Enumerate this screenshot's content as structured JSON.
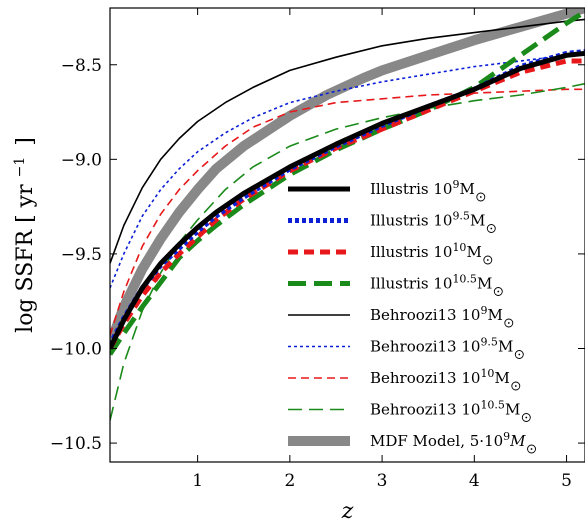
{
  "chart_data": {
    "type": "line",
    "title": "",
    "xlabel": "z",
    "ylabel": "log SSFR [ yr",
    "ylabel_sup": "−1",
    "ylabel_close": "]",
    "xlim": [
      0.05,
      5.2
    ],
    "ylim": [
      -10.6,
      -8.2
    ],
    "grid": false,
    "legend": "lower-right",
    "xticks": [
      {
        "value": 1,
        "label": "1"
      },
      {
        "value": 2,
        "label": "2"
      },
      {
        "value": 3,
        "label": "3"
      },
      {
        "value": 4,
        "label": "4"
      },
      {
        "value": 5,
        "label": "5"
      }
    ],
    "yticks": [
      {
        "value": -8.5,
        "label": "−8.5"
      },
      {
        "value": -9.0,
        "label": "−9.0"
      },
      {
        "value": -9.5,
        "label": "−9.5"
      },
      {
        "value": -10.0,
        "label": "−10.0"
      },
      {
        "value": -10.5,
        "label": "−10.5"
      }
    ],
    "series": [
      {
        "name": "Illustris 10",
        "sup": "9",
        "suffix": "M",
        "sun": true,
        "color": "#000000",
        "width": 5,
        "dash": "",
        "x": [
          0.05,
          0.2,
          0.4,
          0.6,
          0.8,
          1.0,
          1.2,
          1.5,
          2.0,
          2.5,
          3.0,
          3.5,
          4.0,
          4.5,
          5.0,
          5.2
        ],
        "y": [
          -10.0,
          -9.85,
          -9.68,
          -9.55,
          -9.45,
          -9.36,
          -9.28,
          -9.18,
          -9.04,
          -8.92,
          -8.81,
          -8.72,
          -8.63,
          -8.52,
          -8.45,
          -8.44
        ]
      },
      {
        "name": "Illustris 10",
        "sup": "9.5",
        "suffix": "M",
        "sun": true,
        "color": "#0a1fd6",
        "width": 5,
        "dash": "4 3",
        "x": [
          0.05,
          0.2,
          0.4,
          0.6,
          0.8,
          1.0,
          1.2,
          1.5,
          2.0,
          2.5,
          3.0,
          3.5,
          4.0,
          4.5,
          5.0,
          5.2
        ],
        "y": [
          -9.98,
          -9.84,
          -9.68,
          -9.56,
          -9.47,
          -9.38,
          -9.3,
          -9.2,
          -9.05,
          -8.93,
          -8.82,
          -8.72,
          -8.63,
          -8.51,
          -8.44,
          -8.43
        ]
      },
      {
        "name": "Illustris 10",
        "sup": "10",
        "suffix": "M",
        "sun": true,
        "color": "#e8181a",
        "width": 5,
        "dash": "10 6",
        "x": [
          0.05,
          0.2,
          0.4,
          0.6,
          0.8,
          1.0,
          1.2,
          1.5,
          2.0,
          2.5,
          3.0,
          3.5,
          4.0,
          4.5,
          5.0,
          5.2
        ],
        "y": [
          -10.0,
          -9.87,
          -9.72,
          -9.6,
          -9.5,
          -9.41,
          -9.32,
          -9.21,
          -9.06,
          -8.94,
          -8.84,
          -8.74,
          -8.64,
          -8.54,
          -8.48,
          -8.48
        ]
      },
      {
        "name": "Illustris 10",
        "sup": "10.5",
        "suffix": "M",
        "sun": true,
        "color": "#1a8a1a",
        "width": 5,
        "dash": "18 8",
        "x": [
          0.05,
          0.2,
          0.4,
          0.6,
          0.8,
          1.0,
          1.2,
          1.5,
          2.0,
          2.5,
          3.0,
          3.5,
          4.0,
          4.5,
          5.0,
          5.2
        ],
        "y": [
          -10.03,
          -9.92,
          -9.78,
          -9.65,
          -9.52,
          -9.43,
          -9.35,
          -9.24,
          -9.08,
          -8.95,
          -8.84,
          -8.74,
          -8.62,
          -8.45,
          -8.28,
          -8.22
        ]
      },
      {
        "name": "Behroozi13 10",
        "sup": "9",
        "suffix": "M",
        "sun": true,
        "color": "#000000",
        "width": 1.6,
        "dash": "",
        "x": [
          0.05,
          0.2,
          0.4,
          0.6,
          0.8,
          1.0,
          1.3,
          1.6,
          2.0,
          2.5,
          3.0,
          3.5,
          4.0,
          4.5,
          5.0,
          5.2
        ],
        "y": [
          -9.55,
          -9.35,
          -9.15,
          -9.0,
          -8.89,
          -8.8,
          -8.7,
          -8.62,
          -8.53,
          -8.46,
          -8.4,
          -8.36,
          -8.33,
          -8.3,
          -8.27,
          -8.26
        ]
      },
      {
        "name": "Behroozi13 10",
        "sup": "9.5",
        "suffix": "M",
        "sun": true,
        "color": "#0a1fd6",
        "width": 1.6,
        "dash": "3 3",
        "x": [
          0.05,
          0.2,
          0.4,
          0.6,
          0.8,
          1.0,
          1.3,
          1.6,
          2.0,
          2.5,
          3.0,
          3.5,
          4.0,
          4.5,
          5.0,
          5.2
        ],
        "y": [
          -9.68,
          -9.5,
          -9.3,
          -9.16,
          -9.05,
          -8.96,
          -8.86,
          -8.78,
          -8.7,
          -8.64,
          -8.59,
          -8.55,
          -8.51,
          -8.48,
          -8.45,
          -8.44
        ]
      },
      {
        "name": "Behroozi13 10",
        "sup": "10",
        "suffix": "M",
        "sun": true,
        "color": "#e8181a",
        "width": 1.6,
        "dash": "8 5",
        "x": [
          0.05,
          0.2,
          0.4,
          0.6,
          0.8,
          1.0,
          1.3,
          1.6,
          2.0,
          2.5,
          3.0,
          3.5,
          4.0,
          4.5,
          5.0,
          5.2
        ],
        "y": [
          -9.93,
          -9.7,
          -9.46,
          -9.29,
          -9.16,
          -9.06,
          -8.93,
          -8.83,
          -8.75,
          -8.7,
          -8.68,
          -8.66,
          -8.65,
          -8.64,
          -8.63,
          -8.63
        ]
      },
      {
        "name": "Behroozi13 10",
        "sup": "10.5",
        "suffix": "M",
        "sun": true,
        "color": "#1a8a1a",
        "width": 1.6,
        "dash": "14 7",
        "x": [
          0.05,
          0.2,
          0.4,
          0.6,
          0.8,
          1.0,
          1.3,
          1.6,
          2.0,
          2.5,
          3.0,
          3.5,
          4.0,
          4.5,
          5.0,
          5.2
        ],
        "y": [
          -10.38,
          -10.08,
          -9.8,
          -9.6,
          -9.44,
          -9.32,
          -9.16,
          -9.04,
          -8.93,
          -8.84,
          -8.78,
          -8.73,
          -8.69,
          -8.66,
          -8.62,
          -8.6
        ]
      },
      {
        "name": "MDF Model, 5·10",
        "sup": "9",
        "suffix": "M",
        "sun": true,
        "italicM": true,
        "color": "#888888",
        "width": 10,
        "dash": "",
        "x": [
          0.05,
          0.2,
          0.4,
          0.6,
          0.8,
          1.0,
          1.2,
          1.5,
          2.0,
          2.4,
          2.8,
          3.0,
          3.5,
          4.0,
          4.5,
          5.0,
          5.2
        ],
        "y": [
          -9.98,
          -9.78,
          -9.58,
          -9.42,
          -9.28,
          -9.16,
          -9.05,
          -8.93,
          -8.77,
          -8.66,
          -8.57,
          -8.53,
          -8.45,
          -8.37,
          -8.3,
          -8.23,
          -8.2
        ]
      }
    ]
  }
}
